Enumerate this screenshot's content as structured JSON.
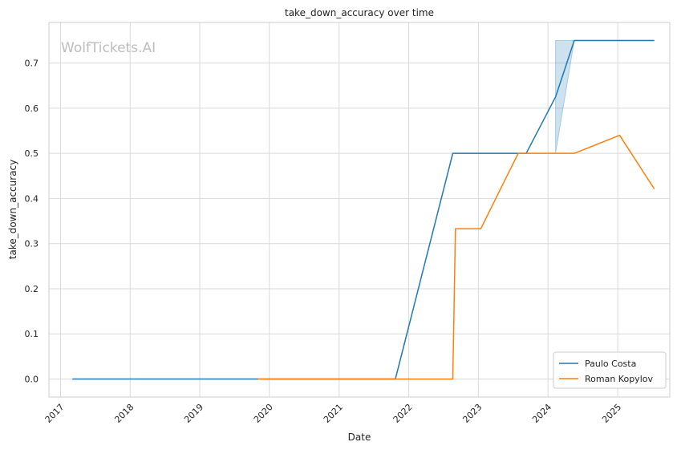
{
  "chart_data": {
    "type": "line",
    "title": "take_down_accuracy over time",
    "xlabel": "Date",
    "ylabel": "take_down_accuracy",
    "watermark": "WolfTickets.AI",
    "xlim": [
      "2016-11-01",
      "2025-10-01"
    ],
    "ylim": [
      -0.04,
      0.79
    ],
    "x_ticks": [
      "2017",
      "2018",
      "2019",
      "2020",
      "2021",
      "2022",
      "2023",
      "2024",
      "2025"
    ],
    "y_ticks": [
      "0.0",
      "0.1",
      "0.2",
      "0.3",
      "0.4",
      "0.5",
      "0.6",
      "0.7"
    ],
    "grid": true,
    "legend_position": "bottom-right",
    "series": [
      {
        "name": "Paulo Costa",
        "color": "#1f77b4",
        "points": [
          [
            "2017-03-04",
            0.0
          ],
          [
            "2019-11-02",
            0.0
          ],
          [
            "2021-10-23",
            0.0
          ],
          [
            "2022-08-20",
            0.5
          ],
          [
            "2023-09-09",
            0.5
          ],
          [
            "2024-02-10",
            0.625
          ],
          [
            "2024-05-18",
            0.75
          ],
          [
            "2025-07-12",
            0.75
          ]
        ],
        "band": {
          "color": "#1f77b4",
          "opacity": 0.22,
          "points": [
            [
              "2024-02-10",
              0.5,
              0.75
            ],
            [
              "2024-05-18",
              0.75,
              0.75
            ]
          ]
        }
      },
      {
        "name": "Roman Kopylov",
        "color": "#ff7f0e",
        "points": [
          [
            "2019-11-02",
            0.0
          ],
          [
            "2022-08-20",
            0.0
          ],
          [
            "2022-09-03",
            0.333
          ],
          [
            "2023-01-14",
            0.333
          ],
          [
            "2023-07-29",
            0.5
          ],
          [
            "2024-05-18",
            0.5
          ],
          [
            "2025-01-11",
            0.54
          ],
          [
            "2025-07-12",
            0.421
          ]
        ]
      }
    ]
  }
}
